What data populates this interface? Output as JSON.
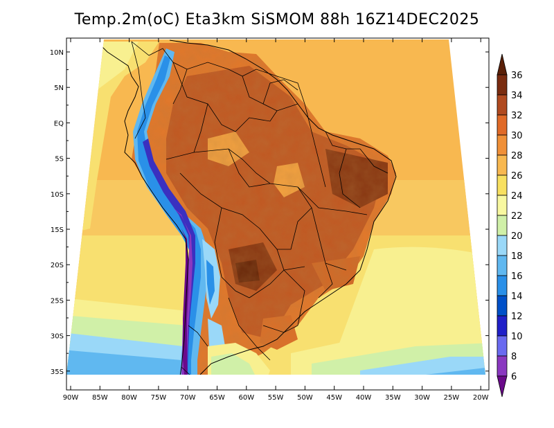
{
  "title": "Temp.2m(oC) Eta3km SiSMOM 88h 16Z14DEC2025",
  "map": {
    "lat_labels": [
      "10N",
      "5N",
      "EQ",
      "5S",
      "10S",
      "15S",
      "20S",
      "25S",
      "30S",
      "35S"
    ],
    "lon_labels": [
      "90W",
      "85W",
      "80W",
      "75W",
      "70W",
      "65W",
      "60W",
      "55W",
      "50W",
      "45W",
      "40W",
      "35W",
      "30W",
      "25W",
      "20W"
    ],
    "lat_range": [
      -38,
      11.5
    ],
    "lon_range": [
      -91,
      -19.5
    ]
  },
  "colorbar": {
    "labels": [
      "6",
      "8",
      "10",
      "12",
      "14",
      "16",
      "18",
      "20",
      "22",
      "24",
      "26",
      "28",
      "30",
      "32",
      "34",
      "36"
    ],
    "colors": [
      "#6a0a8a",
      "#8a38c0",
      "#6a6af0",
      "#2020c8",
      "#0050c8",
      "#2a90e8",
      "#60b8f0",
      "#9ad8f8",
      "#d0f0a8",
      "#f8f8a0",
      "#f8e060",
      "#f8b850",
      "#f09038",
      "#e06a28",
      "#b04a20",
      "#7a2c10",
      "#5a2008"
    ],
    "legend_placement": "right"
  }
}
